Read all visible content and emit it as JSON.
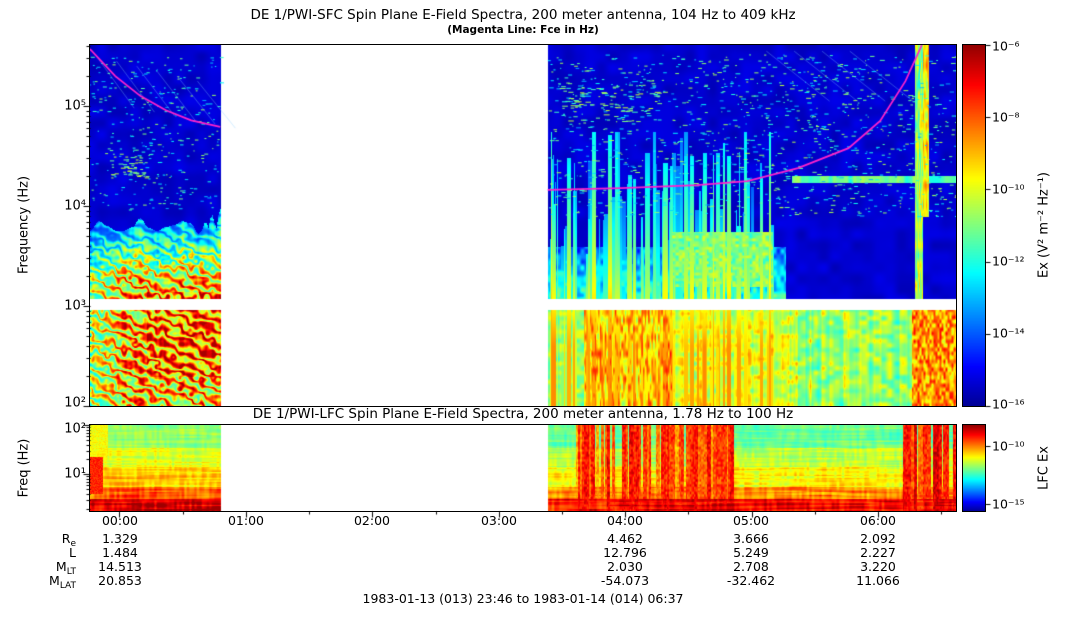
{
  "figure": {
    "caption": "1983-01-13 (013) 23:46 to 1983-01-14 (014) 06:37"
  },
  "chart_data": {
    "type": "heatmap",
    "subtype": "dynamic-spectrogram",
    "time_start_label": "1983-01-13 (013) 23:46",
    "time_end_label": "1983-01-14 (014) 06:37",
    "duration_hours": 6.85,
    "data_gap_hours": [
      1.03,
      3.62
    ],
    "x_ticks": [
      {
        "label": "00:00",
        "hours": 0.2333
      },
      {
        "label": "01:00",
        "hours": 1.2333
      },
      {
        "label": "02:00",
        "hours": 2.2333
      },
      {
        "label": "03:00",
        "hours": 3.2333
      },
      {
        "label": "04:00",
        "hours": 4.2333
      },
      {
        "label": "05:00",
        "hours": 5.2333
      },
      {
        "label": "06:00",
        "hours": 6.2333
      }
    ],
    "panels": [
      {
        "id": "sfc",
        "title": "DE 1/PWI-SFC  Spin Plane E-Field Spectra, 200 meter antenna, 104 Hz to 409 kHz",
        "subtitle": "(Magenta Line: Fce in Hz)",
        "ylabel": "Frequency (Hz)",
        "axis_range_hz": [
          100,
          409000
        ],
        "instrument_range": "104 Hz to 409 kHz",
        "y_ticks": [
          {
            "label": "10⁵",
            "hz": 100000
          },
          {
            "label": "10⁴",
            "hz": 10000
          },
          {
            "label": "10³",
            "hz": 1000
          },
          {
            "label": "10²",
            "hz": 100
          }
        ],
        "white_divider_hz": [
          920,
          1180
        ],
        "colorbar": {
          "label": "Ex (V² m⁻² Hz⁻¹)",
          "ticks": [
            {
              "label": "10⁻⁶",
              "value": 1e-06
            },
            {
              "label": "10⁻⁸",
              "value": 1e-08
            },
            {
              "label": "10⁻¹⁰",
              "value": 1e-10
            },
            {
              "label": "10⁻¹²",
              "value": 1e-12
            },
            {
              "label": "10⁻¹⁴",
              "value": 1e-14
            },
            {
              "label": "10⁻¹⁶",
              "value": 1e-16
            }
          ]
        },
        "fce_line": {
          "color": "#ff22cc",
          "legend": "Fce in Hz",
          "points_hours_hz": [
            [
              0.0,
              372000
            ],
            [
              0.2,
              200000
            ],
            [
              0.4,
              126000
            ],
            [
              0.6,
              91000
            ],
            [
              0.8,
              72000
            ],
            [
              1.03,
              62000
            ],
            [
              3.62,
              14500
            ],
            [
              4.2,
              15100
            ],
            [
              4.8,
              16200
            ],
            [
              5.2,
              17800
            ],
            [
              5.6,
              24000
            ],
            [
              6.0,
              38000
            ],
            [
              6.25,
              71000
            ],
            [
              6.45,
              178000
            ],
            [
              6.58,
              409000
            ]
          ]
        },
        "features": [
          {
            "name": "intense-low-freq-emission",
            "hours": [
              0.0,
              1.03
            ],
            "hz": [
              100,
              7000
            ],
            "level": "orange-red"
          },
          {
            "name": "broadband-vertical-streaks",
            "hours": [
              3.64,
              5.45
            ],
            "hz": [
              100,
              30000
            ],
            "level": "green"
          },
          {
            "name": "low-freq-wash",
            "hours": [
              3.62,
              6.85
            ],
            "hz": [
              100,
              900
            ],
            "level": "green-yellow"
          },
          {
            "name": "orange-streak-cluster",
            "hours": [
              3.9,
              4.6
            ],
            "hz": [
              100,
              900
            ],
            "level": "orange"
          },
          {
            "name": "narrowband-line",
            "hours": [
              5.55,
              6.85
            ],
            "hz": [
              18000,
              20000
            ],
            "level": "cyan-green"
          },
          {
            "name": "bright-broadband-column",
            "hours": [
              6.52,
              6.63
            ],
            "hz": [
              100,
              409000
            ],
            "level": "green-yellow"
          }
        ]
      },
      {
        "id": "lfc",
        "title": "DE 1/PWI-LFC  Spin Plane E-Field Spectra, 200 meter antenna, 1.78 Hz to 100 Hz",
        "ylabel": "Freq (Hz)",
        "axis_range_hz": [
          1.78,
          100
        ],
        "y_ticks": [
          {
            "label": "10²",
            "hz": 100
          },
          {
            "label": "10¹",
            "hz": 10
          }
        ],
        "colorbar": {
          "label": "LFC Ex",
          "ticks": [
            {
              "label": "10⁻¹⁰",
              "value": 1e-10
            },
            {
              "label": "10⁻¹⁵",
              "value": 1e-15
            }
          ]
        },
        "features": [
          {
            "name": "red-band-lowest-freqs",
            "hours": [
              0,
              6.85
            ],
            "hz": [
              1.78,
              4
            ],
            "level": "red"
          },
          {
            "name": "orange-red-streaks",
            "hours": [
              3.85,
              5.1
            ],
            "hz": [
              1.78,
              100
            ],
            "level": "orange-red"
          },
          {
            "name": "red-columns-right-edge",
            "hours": [
              6.42,
              6.85
            ],
            "hz": [
              1.78,
              100
            ],
            "level": "red"
          }
        ]
      }
    ]
  },
  "ephemeris": {
    "column_hours": [
      0.2333,
      4.2333,
      5.2333,
      6.2333
    ],
    "rows": [
      {
        "label": "R",
        "sub": "e",
        "values": [
          "1.329",
          "4.462",
          "3.666",
          "2.092"
        ]
      },
      {
        "label": "L",
        "sub": "",
        "values": [
          "1.484",
          "12.796",
          "5.249",
          "2.227"
        ]
      },
      {
        "label": "M",
        "sub": "LT",
        "values": [
          "14.513",
          "2.030",
          "2.708",
          "3.220"
        ]
      },
      {
        "label": "M",
        "sub": "LAT",
        "values": [
          "20.853",
          "-54.073",
          "-32.462",
          "11.066"
        ]
      }
    ]
  }
}
